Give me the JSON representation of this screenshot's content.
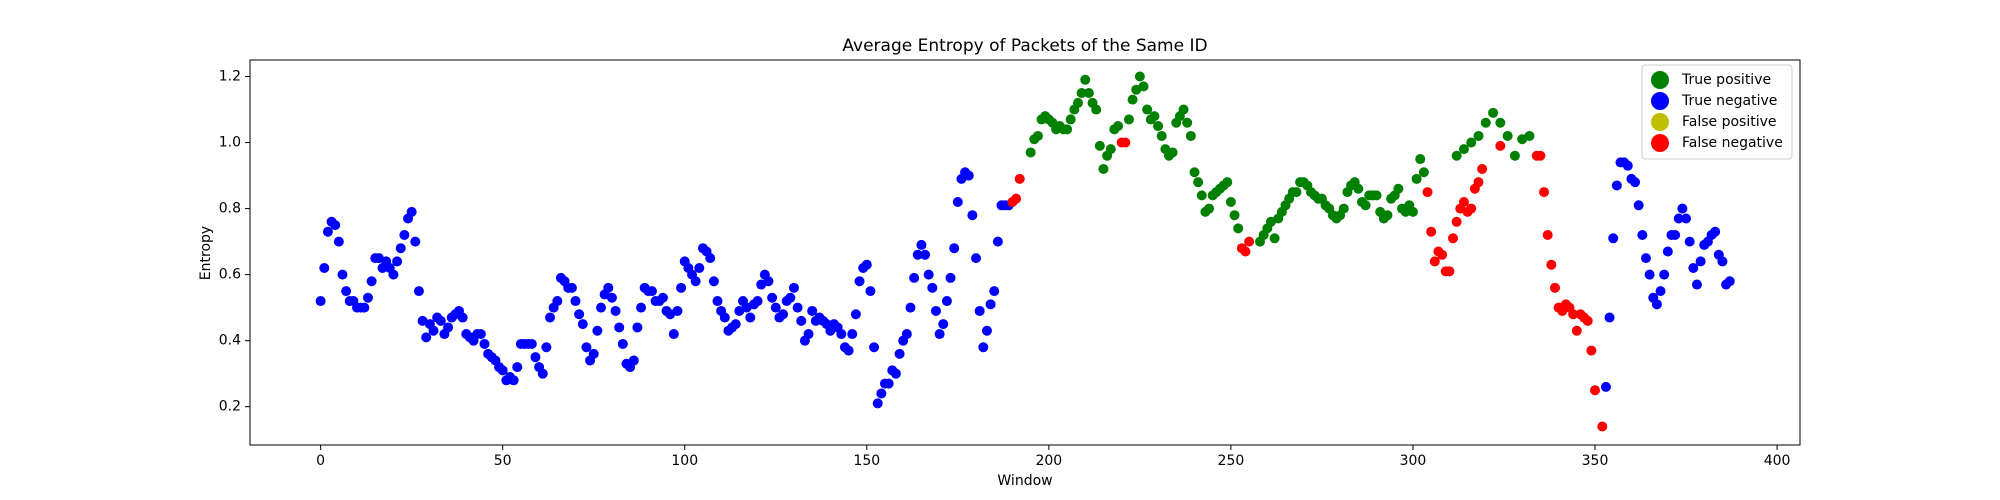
{
  "chart_data": {
    "type": "scatter",
    "title": "Average Entropy of Packets of the Same ID",
    "xlabel": "Window",
    "ylabel": "Entropy",
    "xlim": [
      -19.4,
      406.3
    ],
    "ylim": [
      0.084,
      1.25
    ],
    "xticks": [
      0,
      50,
      100,
      150,
      200,
      250,
      300,
      350,
      400
    ],
    "yticks": [
      0.2,
      0.4,
      0.6,
      0.8,
      {
        "value": 1,
        "label": "1.0"
      },
      1.2
    ],
    "legend": "upper right",
    "series": [
      {
        "name": "True positive",
        "color": "#008000",
        "x": [
          195,
          196,
          197,
          198,
          199,
          200,
          201,
          202,
          203,
          204,
          205,
          206,
          207,
          208,
          209,
          210,
          211,
          212,
          213,
          214,
          215,
          216,
          217,
          218,
          219,
          222,
          223,
          224,
          225,
          226,
          227,
          228,
          229,
          230,
          231,
          232,
          233,
          234,
          235,
          236,
          237,
          238,
          239,
          240,
          241,
          242,
          243,
          244,
          245,
          246,
          247,
          248,
          249,
          250,
          251,
          252,
          258,
          259,
          260,
          261,
          262,
          263,
          264,
          265,
          266,
          267,
          268,
          269,
          270,
          271,
          272,
          273,
          274,
          275,
          276,
          277,
          278,
          279,
          280,
          281,
          282,
          283,
          284,
          285,
          286,
          287,
          288,
          289,
          290,
          291,
          292,
          293,
          294,
          295,
          296,
          297,
          298,
          299,
          300,
          301,
          302,
          303,
          312,
          314,
          316,
          318,
          320,
          322,
          324,
          326,
          328,
          330,
          332
        ],
        "values": [
          0.97,
          1.01,
          1.02,
          1.07,
          1.08,
          1.07,
          1.06,
          1.04,
          1.05,
          1.04,
          1.04,
          1.07,
          1.1,
          1.12,
          1.15,
          1.19,
          1.15,
          1.12,
          1.1,
          0.99,
          0.92,
          0.96,
          0.98,
          1.04,
          1.05,
          1.07,
          1.13,
          1.16,
          1.2,
          1.17,
          1.1,
          1.07,
          1.08,
          1.05,
          1.02,
          0.98,
          0.96,
          0.97,
          1.06,
          1.08,
          1.1,
          1.06,
          1.02,
          0.91,
          0.88,
          0.84,
          0.79,
          0.8,
          0.84,
          0.85,
          0.86,
          0.87,
          0.88,
          0.82,
          0.78,
          0.74,
          0.7,
          0.72,
          0.74,
          0.76,
          0.71,
          0.77,
          0.79,
          0.81,
          0.83,
          0.85,
          0.85,
          0.88,
          0.88,
          0.87,
          0.85,
          0.84,
          0.83,
          0.83,
          0.81,
          0.8,
          0.78,
          0.77,
          0.78,
          0.8,
          0.85,
          0.87,
          0.88,
          0.86,
          0.82,
          0.81,
          0.84,
          0.84,
          0.84,
          0.79,
          0.77,
          0.78,
          0.83,
          0.84,
          0.86,
          0.8,
          0.79,
          0.81,
          0.79,
          0.89,
          0.95,
          0.91,
          0.96,
          0.98,
          1.0,
          1.02,
          1.06,
          1.09,
          1.06,
          1.02,
          0.96,
          1.01,
          1.02
        ]
      },
      {
        "name": "True negative",
        "color": "#0000ff",
        "x": [
          0,
          1,
          2,
          3,
          4,
          5,
          6,
          7,
          8,
          9,
          10,
          11,
          12,
          13,
          14,
          15,
          16,
          17,
          18,
          19,
          20,
          21,
          22,
          23,
          24,
          25,
          26,
          27,
          28,
          29,
          30,
          31,
          32,
          33,
          34,
          35,
          36,
          37,
          38,
          39,
          40,
          41,
          42,
          43,
          44,
          45,
          46,
          47,
          48,
          49,
          50,
          51,
          52,
          53,
          54,
          55,
          56,
          57,
          58,
          59,
          60,
          61,
          62,
          63,
          64,
          65,
          66,
          67,
          68,
          69,
          70,
          71,
          72,
          73,
          74,
          75,
          76,
          77,
          78,
          79,
          80,
          81,
          82,
          83,
          84,
          85,
          86,
          87,
          88,
          89,
          90,
          91,
          92,
          93,
          94,
          95,
          96,
          97,
          98,
          99,
          100,
          101,
          102,
          103,
          104,
          105,
          106,
          107,
          108,
          109,
          110,
          111,
          112,
          113,
          114,
          115,
          116,
          117,
          118,
          119,
          120,
          121,
          122,
          123,
          124,
          125,
          126,
          127,
          128,
          129,
          130,
          131,
          132,
          133,
          134,
          135,
          136,
          137,
          138,
          139,
          140,
          141,
          142,
          143,
          144,
          145,
          146,
          147,
          148,
          149,
          150,
          151,
          152,
          153,
          154,
          155,
          156,
          157,
          158,
          159,
          160,
          161,
          162,
          163,
          164,
          165,
          166,
          167,
          168,
          169,
          170,
          171,
          172,
          173,
          174,
          175,
          176,
          177,
          178,
          179,
          180,
          181,
          182,
          183,
          184,
          185,
          186,
          187,
          188,
          189,
          353,
          354,
          355,
          356,
          357,
          358,
          359,
          360,
          361,
          362,
          363,
          364,
          365,
          366,
          367,
          368,
          369,
          370,
          371,
          372,
          373,
          374,
          375,
          376,
          377,
          378,
          379,
          380,
          381,
          382,
          383,
          384,
          385,
          386,
          387
        ],
        "values": [
          0.52,
          0.62,
          0.73,
          0.76,
          0.75,
          0.7,
          0.6,
          0.55,
          0.52,
          0.52,
          0.5,
          0.5,
          0.5,
          0.53,
          0.58,
          0.65,
          0.65,
          0.62,
          0.64,
          0.62,
          0.6,
          0.64,
          0.68,
          0.72,
          0.77,
          0.79,
          0.7,
          0.55,
          0.46,
          0.41,
          0.45,
          0.43,
          0.47,
          0.46,
          0.42,
          0.44,
          0.47,
          0.48,
          0.49,
          0.47,
          0.42,
          0.41,
          0.4,
          0.42,
          0.42,
          0.39,
          0.36,
          0.35,
          0.34,
          0.32,
          0.31,
          0.28,
          0.29,
          0.28,
          0.32,
          0.39,
          0.39,
          0.39,
          0.39,
          0.35,
          0.32,
          0.3,
          0.38,
          0.47,
          0.5,
          0.52,
          0.59,
          0.58,
          0.56,
          0.56,
          0.52,
          0.48,
          0.45,
          0.38,
          0.34,
          0.36,
          0.43,
          0.5,
          0.54,
          0.56,
          0.53,
          0.49,
          0.44,
          0.39,
          0.33,
          0.32,
          0.34,
          0.44,
          0.5,
          0.56,
          0.55,
          0.55,
          0.52,
          0.52,
          0.53,
          0.49,
          0.48,
          0.42,
          0.49,
          0.56,
          0.64,
          0.62,
          0.6,
          0.58,
          0.62,
          0.68,
          0.67,
          0.65,
          0.58,
          0.52,
          0.49,
          0.47,
          0.43,
          0.44,
          0.45,
          0.49,
          0.52,
          0.5,
          0.47,
          0.51,
          0.52,
          0.57,
          0.6,
          0.58,
          0.53,
          0.5,
          0.47,
          0.48,
          0.52,
          0.53,
          0.56,
          0.5,
          0.46,
          0.4,
          0.42,
          0.49,
          0.46,
          0.47,
          0.46,
          0.45,
          0.43,
          0.45,
          0.44,
          0.42,
          0.38,
          0.37,
          0.42,
          0.48,
          0.58,
          0.62,
          0.63,
          0.55,
          0.38,
          0.21,
          0.24,
          0.27,
          0.27,
          0.31,
          0.3,
          0.36,
          0.4,
          0.42,
          0.5,
          0.59,
          0.66,
          0.69,
          0.66,
          0.6,
          0.56,
          0.49,
          0.42,
          0.45,
          0.52,
          0.59,
          0.68,
          0.82,
          0.89,
          0.91,
          0.9,
          0.78,
          0.65,
          0.49,
          0.38,
          0.43,
          0.51,
          0.55,
          0.7,
          0.81,
          0.81,
          0.81,
          0.26,
          0.47,
          0.71,
          0.87,
          0.94,
          0.94,
          0.93,
          0.89,
          0.88,
          0.81,
          0.72,
          0.65,
          0.6,
          0.53,
          0.51,
          0.55,
          0.6,
          0.67,
          0.72,
          0.72,
          0.77,
          0.8,
          0.77,
          0.7,
          0.62,
          0.57,
          0.64,
          0.69,
          0.7,
          0.72,
          0.73,
          0.66,
          0.64,
          0.57,
          0.58
        ]
      },
      {
        "name": "False positive",
        "color": "#bfbf00",
        "x": [],
        "values": []
      },
      {
        "name": "False negative",
        "color": "#ff0000",
        "x": [
          190,
          191,
          192,
          220,
          221,
          253,
          254,
          255,
          304,
          305,
          306,
          307,
          308,
          309,
          310,
          311,
          312,
          313,
          314,
          315,
          316,
          317,
          318,
          319,
          324,
          334,
          335,
          336,
          337,
          338,
          339,
          340,
          341,
          342,
          343,
          344,
          345,
          346,
          347,
          348,
          349,
          350,
          352
        ],
        "values": [
          0.82,
          0.83,
          0.89,
          1.0,
          1.0,
          0.68,
          0.67,
          0.7,
          0.85,
          0.73,
          0.64,
          0.67,
          0.66,
          0.61,
          0.61,
          0.71,
          0.76,
          0.8,
          0.82,
          0.79,
          0.8,
          0.86,
          0.88,
          0.92,
          0.99,
          0.96,
          0.96,
          0.85,
          0.72,
          0.63,
          0.56,
          0.5,
          0.49,
          0.51,
          0.5,
          0.48,
          0.43,
          0.48,
          0.47,
          0.46,
          0.37,
          0.25,
          0.14
        ]
      }
    ]
  }
}
